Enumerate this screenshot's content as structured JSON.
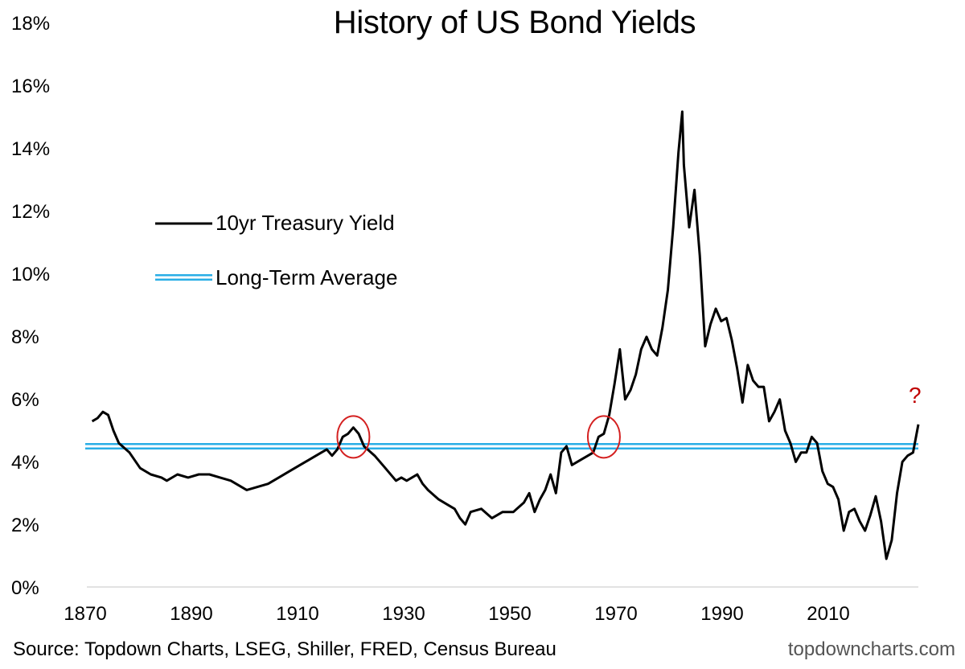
{
  "chart_data": {
    "type": "line",
    "title": "History of US Bond Yields",
    "xlabel": "",
    "ylabel": "",
    "xlim": [
      1870,
      2026
    ],
    "ylim": [
      0,
      18
    ],
    "x_ticks": [
      "1870",
      "1890",
      "1910",
      "1930",
      "1950",
      "1970",
      "1990",
      "2010"
    ],
    "y_ticks": [
      "0%",
      "2%",
      "4%",
      "6%",
      "8%",
      "10%",
      "12%",
      "14%",
      "16%",
      "18%"
    ],
    "grid": false,
    "legend_position": "upper-left",
    "series": [
      {
        "name": "10yr Treasury Yield",
        "color": "#000000",
        "points": [
          [
            1871,
            5.3
          ],
          [
            1872,
            5.4
          ],
          [
            1873,
            5.6
          ],
          [
            1874,
            5.5
          ],
          [
            1875,
            5.0
          ],
          [
            1876,
            4.6
          ],
          [
            1878,
            4.3
          ],
          [
            1880,
            3.8
          ],
          [
            1882,
            3.6
          ],
          [
            1884,
            3.5
          ],
          [
            1885,
            3.4
          ],
          [
            1887,
            3.6
          ],
          [
            1889,
            3.5
          ],
          [
            1891,
            3.6
          ],
          [
            1893,
            3.6
          ],
          [
            1895,
            3.5
          ],
          [
            1897,
            3.4
          ],
          [
            1899,
            3.2
          ],
          [
            1900,
            3.1
          ],
          [
            1902,
            3.2
          ],
          [
            1904,
            3.3
          ],
          [
            1906,
            3.5
          ],
          [
            1908,
            3.7
          ],
          [
            1910,
            3.9
          ],
          [
            1912,
            4.1
          ],
          [
            1914,
            4.3
          ],
          [
            1915,
            4.4
          ],
          [
            1916,
            4.2
          ],
          [
            1917,
            4.4
          ],
          [
            1918,
            4.8
          ],
          [
            1919,
            4.9
          ],
          [
            1920,
            5.1
          ],
          [
            1921,
            4.9
          ],
          [
            1922,
            4.5
          ],
          [
            1924,
            4.2
          ],
          [
            1926,
            3.8
          ],
          [
            1928,
            3.4
          ],
          [
            1929,
            3.5
          ],
          [
            1930,
            3.4
          ],
          [
            1931,
            3.5
          ],
          [
            1932,
            3.6
          ],
          [
            1933,
            3.3
          ],
          [
            1934,
            3.1
          ],
          [
            1936,
            2.8
          ],
          [
            1938,
            2.6
          ],
          [
            1939,
            2.5
          ],
          [
            1940,
            2.2
          ],
          [
            1941,
            2.0
          ],
          [
            1942,
            2.4
          ],
          [
            1944,
            2.5
          ],
          [
            1946,
            2.2
          ],
          [
            1948,
            2.4
          ],
          [
            1950,
            2.4
          ],
          [
            1952,
            2.7
          ],
          [
            1953,
            3.0
          ],
          [
            1954,
            2.4
          ],
          [
            1955,
            2.8
          ],
          [
            1956,
            3.1
          ],
          [
            1957,
            3.6
          ],
          [
            1958,
            3.0
          ],
          [
            1959,
            4.3
          ],
          [
            1960,
            4.5
          ],
          [
            1961,
            3.9
          ],
          [
            1962,
            4.0
          ],
          [
            1963,
            4.1
          ],
          [
            1964,
            4.2
          ],
          [
            1965,
            4.3
          ],
          [
            1966,
            4.8
          ],
          [
            1967,
            4.9
          ],
          [
            1968,
            5.5
          ],
          [
            1969,
            6.5
          ],
          [
            1970,
            7.6
          ],
          [
            1971,
            6.0
          ],
          [
            1972,
            6.3
          ],
          [
            1973,
            6.8
          ],
          [
            1974,
            7.6
          ],
          [
            1975,
            8.0
          ],
          [
            1976,
            7.6
          ],
          [
            1977,
            7.4
          ],
          [
            1978,
            8.3
          ],
          [
            1979,
            9.5
          ],
          [
            1980,
            11.5
          ],
          [
            1981,
            13.9
          ],
          [
            1981.7,
            15.2
          ],
          [
            1982,
            13.5
          ],
          [
            1983,
            11.5
          ],
          [
            1984,
            12.7
          ],
          [
            1985,
            10.6
          ],
          [
            1986,
            7.7
          ],
          [
            1987,
            8.4
          ],
          [
            1988,
            8.9
          ],
          [
            1989,
            8.5
          ],
          [
            1990,
            8.6
          ],
          [
            1991,
            7.9
          ],
          [
            1992,
            7.0
          ],
          [
            1993,
            5.9
          ],
          [
            1994,
            7.1
          ],
          [
            1995,
            6.6
          ],
          [
            1996,
            6.4
          ],
          [
            1997,
            6.4
          ],
          [
            1998,
            5.3
          ],
          [
            1999,
            5.6
          ],
          [
            2000,
            6.0
          ],
          [
            2001,
            5.0
          ],
          [
            2002,
            4.6
          ],
          [
            2003,
            4.0
          ],
          [
            2004,
            4.3
          ],
          [
            2005,
            4.3
          ],
          [
            2006,
            4.8
          ],
          [
            2007,
            4.6
          ],
          [
            2008,
            3.7
          ],
          [
            2009,
            3.3
          ],
          [
            2010,
            3.2
          ],
          [
            2011,
            2.8
          ],
          [
            2012,
            1.8
          ],
          [
            2013,
            2.4
          ],
          [
            2014,
            2.5
          ],
          [
            2015,
            2.1
          ],
          [
            2016,
            1.8
          ],
          [
            2017,
            2.3
          ],
          [
            2018,
            2.9
          ],
          [
            2019,
            2.1
          ],
          [
            2020,
            0.9
          ],
          [
            2021,
            1.5
          ],
          [
            2022,
            3.0
          ],
          [
            2023,
            4.0
          ],
          [
            2024,
            4.2
          ],
          [
            2025,
            4.3
          ],
          [
            2026,
            5.2
          ]
        ]
      },
      {
        "name": "Long-Term Average",
        "color": "#29aee6",
        "value": 4.5
      }
    ],
    "annotations": [
      {
        "type": "circle",
        "x": 1920,
        "y": 4.8,
        "color": "#d42020"
      },
      {
        "type": "circle",
        "x": 1967,
        "y": 4.8,
        "color": "#d42020"
      },
      {
        "type": "text",
        "text": "?",
        "color": "#c00000"
      }
    ]
  },
  "footer": {
    "source": "Source: Topdown Charts, LSEG, Shiller, FRED, Census Bureau",
    "website": "topdowncharts.com"
  }
}
